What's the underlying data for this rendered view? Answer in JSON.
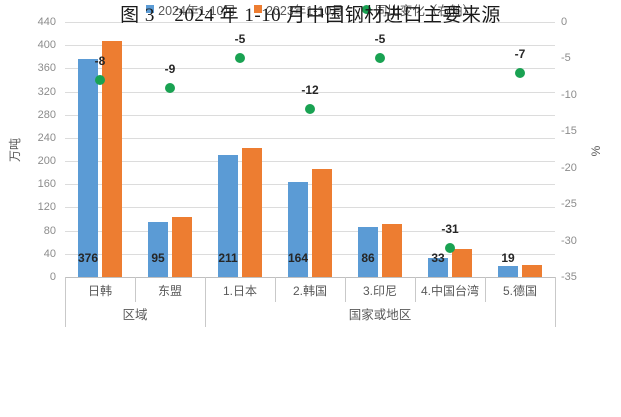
{
  "caption": "图 3　2024 年 1-10 月中国钢材进口主要来源",
  "chart_data": {
    "type": "bar",
    "title": "",
    "categories": [
      "日韩",
      "东盟",
      "1.日本",
      "2.韩国",
      "3.印尼",
      "4.中国台湾",
      "5.德国"
    ],
    "category_groups": [
      {
        "label": "区域",
        "start": 0,
        "count": 2
      },
      {
        "label": "国家或地区",
        "start": 2,
        "count": 5
      }
    ],
    "series": [
      {
        "name": "2024年1-10月",
        "type": "bar",
        "axis": "left",
        "color": "#5B9BD5",
        "values": [
          376,
          95,
          211,
          164,
          86,
          33,
          19
        ],
        "labels": "base"
      },
      {
        "name": "2023年1-10月",
        "type": "bar",
        "axis": "left",
        "color": "#ED7D31",
        "values": [
          408,
          104,
          222,
          186,
          91,
          48,
          20
        ],
        "labels": "none"
      },
      {
        "name": "同比变化（右轴）",
        "type": "scatter",
        "axis": "right",
        "color": "#19A252",
        "values": [
          -8,
          -9,
          -5,
          -12,
          -5,
          -31,
          -7
        ],
        "labels": "above"
      }
    ],
    "left_axis": {
      "label": "万吨",
      "min": 0,
      "max": 440,
      "step": 40
    },
    "right_axis": {
      "label": "%",
      "min": -35,
      "max": 0,
      "step": 5
    },
    "grid": true,
    "legend_position": "bottom"
  }
}
